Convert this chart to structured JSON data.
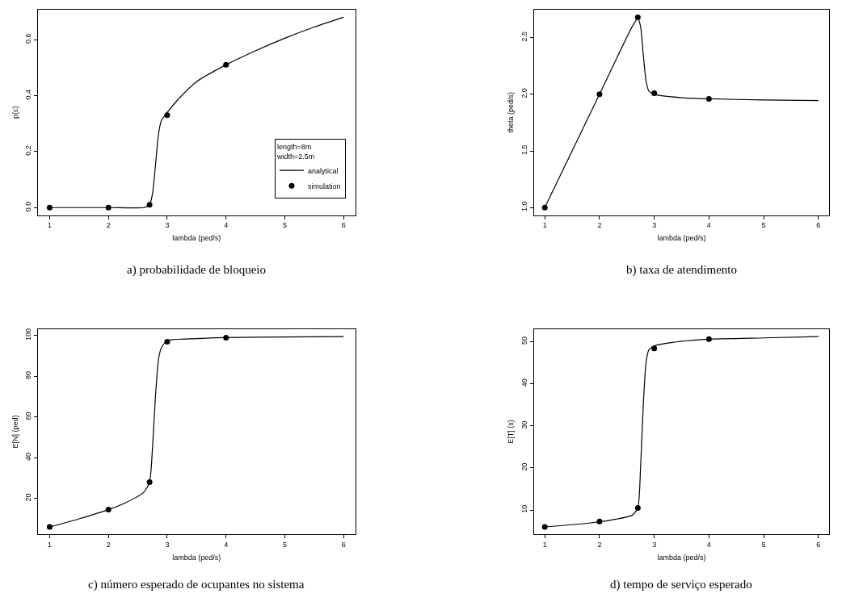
{
  "chart_data": [
    {
      "type": "line",
      "title": "a) probabilidade de bloqueio",
      "xlabel": "lambda (ped/s)",
      "ylabel": "p(c)",
      "legend": "bottom right",
      "legend_title": "length=8m\nwidth=2.5m",
      "xlim": [
        0.8,
        6.2
      ],
      "xticks": [
        1,
        2,
        3,
        4,
        5,
        6
      ],
      "ylim": [
        -0.027,
        0.707
      ],
      "yticks": [
        {
          "value": 0,
          "label": "0.0"
        },
        0.2,
        0.4,
        0.6
      ],
      "series": [
        {
          "name": "analytical",
          "color": "#000000",
          "marker": "none",
          "x": [
            1,
            2,
            2.6,
            2.7,
            2.75,
            2.8,
            2.85,
            2.9,
            3.0,
            3.2,
            3.5,
            4,
            4.5,
            5,
            5.5,
            6
          ],
          "values": [
            0,
            0,
            0,
            0.01,
            0.05,
            0.15,
            0.26,
            0.31,
            0.34,
            0.39,
            0.45,
            0.51,
            0.56,
            0.605,
            0.645,
            0.68
          ]
        },
        {
          "name": "simulation",
          "type": "scatter",
          "color": "#000000",
          "marker": "circle",
          "x": [
            1,
            2,
            2.7,
            3,
            4
          ],
          "values": [
            0,
            0,
            0.01,
            0.33,
            0.51
          ]
        }
      ]
    },
    {
      "type": "line",
      "title": "b) taxa de atendimento",
      "xlabel": "lambda (ped/s)",
      "ylabel": "theta (ped/s)",
      "xlim": [
        0.8,
        6.2
      ],
      "xticks": [
        1,
        2,
        3,
        4,
        5,
        6
      ],
      "ylim": [
        0.933,
        2.747
      ],
      "yticks": [
        {
          "value": 1,
          "label": "1.0"
        },
        1.5,
        {
          "value": 2,
          "label": "2.0"
        },
        2.5
      ],
      "series": [
        {
          "color": "#000000",
          "marker": "none",
          "x": [
            1,
            2,
            2.6,
            2.7,
            2.75,
            2.8,
            2.85,
            2.9,
            3,
            3.5,
            4,
            5,
            6
          ],
          "values": [
            1,
            2,
            2.6,
            2.67,
            2.6,
            2.35,
            2.12,
            2.03,
            2.0,
            1.97,
            1.96,
            1.95,
            1.945
          ]
        },
        {
          "type": "scatter",
          "color": "#000000",
          "marker": "circle",
          "x": [
            1,
            2,
            2.7,
            3,
            4
          ],
          "values": [
            1.0,
            2.0,
            2.68,
            2.01,
            1.96
          ]
        }
      ]
    },
    {
      "type": "line",
      "title": "c) número esperado de ocupantes no sistema",
      "xlabel": "lambda (ped/s)",
      "ylabel": "E[N] (ped)",
      "xlim": [
        0.8,
        6.2
      ],
      "xticks": [
        1,
        2,
        3,
        4,
        5,
        6
      ],
      "ylim": [
        2.3,
        103.2
      ],
      "yticks": [
        20,
        40,
        60,
        80,
        100
      ],
      "series": [
        {
          "color": "#000000",
          "marker": "none",
          "x": [
            1,
            1.5,
            2,
            2.3,
            2.6,
            2.7,
            2.75,
            2.8,
            2.85,
            2.9,
            3,
            3.5,
            4,
            5,
            6
          ],
          "values": [
            6,
            10,
            14.5,
            18,
            23,
            28,
            45,
            70,
            88,
            94,
            97.5,
            98.5,
            99,
            99.3,
            99.5
          ]
        },
        {
          "type": "scatter",
          "color": "#000000",
          "marker": "circle",
          "x": [
            1,
            2,
            2.7,
            3,
            4
          ],
          "values": [
            6,
            14.5,
            28,
            97,
            99
          ]
        }
      ]
    },
    {
      "type": "line",
      "title": "d) tempo de serviço esperado",
      "xlabel": "lambda (ped/s)",
      "ylabel": "E[T] (s)",
      "xlim": [
        0.8,
        6.2
      ],
      "xticks": [
        1,
        2,
        3,
        4,
        5,
        6
      ],
      "ylim": [
        4.2,
        53
      ],
      "yticks": [
        10,
        20,
        30,
        40,
        50
      ],
      "series": [
        {
          "color": "#000000",
          "marker": "none",
          "x": [
            1,
            2,
            2.6,
            2.7,
            2.75,
            2.8,
            2.85,
            2.9,
            3,
            3.5,
            4,
            5,
            6
          ],
          "values": [
            6,
            7.2,
            8.8,
            10.5,
            20,
            35,
            45,
            48,
            49,
            50.1,
            50.6,
            50.9,
            51.2
          ]
        },
        {
          "type": "scatter",
          "color": "#000000",
          "marker": "circle",
          "x": [
            1,
            2,
            2.7,
            3,
            4
          ],
          "values": [
            6,
            7.3,
            10.5,
            48.4,
            50.6
          ]
        }
      ]
    }
  ]
}
